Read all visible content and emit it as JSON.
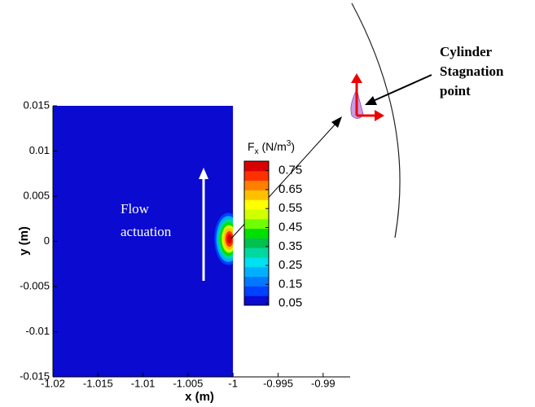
{
  "chart_data": {
    "type": "contour",
    "xlabel": "x (m)",
    "ylabel": "y (m)",
    "xlim": [
      -1.02,
      -0.987
    ],
    "ylim": [
      -0.015,
      0.015
    ],
    "xticks": [
      -1.02,
      -1.015,
      -1.01,
      -1.005,
      -1,
      -0.995,
      -0.99
    ],
    "yticks": [
      -0.015,
      -0.01,
      -0.005,
      0,
      0.005,
      0.01,
      0.015
    ],
    "field_xrange": [
      -1.02,
      -1
    ],
    "colorbar": {
      "title_parts": [
        "F",
        "x",
        " (N/m",
        "3",
        ")"
      ],
      "clim": [
        0.04,
        0.8
      ],
      "ticks": [
        0.05,
        0.15,
        0.25,
        0.35,
        0.45,
        0.55,
        0.65,
        0.75
      ],
      "colors": [
        "#0a0ad0",
        "#0040ff",
        "#0078ff",
        "#00b0ff",
        "#00e0f0",
        "#00d8a0",
        "#00c050",
        "#00e000",
        "#70ff00",
        "#d0ff00",
        "#ffff00",
        "#ffc000",
        "#ff8000",
        "#ff3000",
        "#d80000"
      ]
    },
    "annotations": {
      "flow": [
        "Flow",
        "actuation"
      ],
      "cylinder": [
        "Cylinder",
        "Stagnation",
        "point"
      ]
    }
  }
}
